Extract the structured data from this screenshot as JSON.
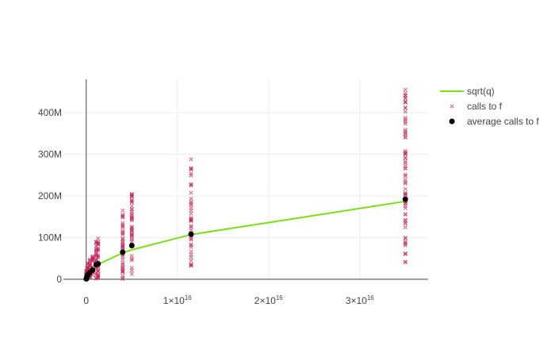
{
  "chart_data": {
    "type": "scatter",
    "x_axis": {
      "range": [
        -2500000000000000.0,
        3.75e+16
      ],
      "ticks": [
        {
          "value": 0,
          "base": "0",
          "exp": ""
        },
        {
          "value": 1e+16,
          "base": "1×10",
          "exp": "16"
        },
        {
          "value": 2e+16,
          "base": "2×10",
          "exp": "16"
        },
        {
          "value": 3e+16,
          "base": "3×10",
          "exp": "16"
        }
      ]
    },
    "y_axis": {
      "range": [
        0,
        480000000
      ],
      "ticks": [
        {
          "value": 0,
          "label": "0"
        },
        {
          "value": 100000000,
          "label": "100M"
        },
        {
          "value": 200000000,
          "label": "200M"
        },
        {
          "value": 300000000,
          "label": "300M"
        },
        {
          "value": 400000000,
          "label": "400M"
        }
      ]
    },
    "grid": true,
    "legend_position": "top-right",
    "series": [
      {
        "name": "sqrt(q)",
        "mode": "line",
        "color": "#7fdc1c",
        "x": [
          0,
          10000000000000.0,
          50000000000000.0,
          100000000000000.0,
          200000000000000.0,
          400000000000000.0,
          700000000000000.0,
          1000000000000000.0,
          1200000000000000.0,
          4000000000000000.0,
          5000000000000000.0,
          1.15e+16,
          3.5e+16
        ],
        "y": [
          0,
          3162278,
          7071068,
          10000000,
          14142136,
          20000000,
          26457513,
          31622777,
          34641016,
          63245553,
          70710678,
          107238053,
          187082869
        ]
      },
      {
        "name": "calls to f",
        "mode": "markers",
        "marker": "x",
        "color": "#c0245c",
        "clusters": [
          {
            "x": 10000000000000.0,
            "count": 12,
            "y_min": 0,
            "y_max": 20000000
          },
          {
            "x": 100000000000000.0,
            "count": 14,
            "y_min": 0,
            "y_max": 28000000
          },
          {
            "x": 200000000000000.0,
            "count": 16,
            "y_min": 0,
            "y_max": 38000000
          },
          {
            "x": 400000000000000.0,
            "count": 18,
            "y_min": 0,
            "y_max": 48000000
          },
          {
            "x": 700000000000000.0,
            "count": 18,
            "y_min": 0,
            "y_max": 55000000
          },
          {
            "x": 1100000000000000.0,
            "count": 24,
            "y_min": 0,
            "y_max": 90000000
          },
          {
            "x": 1300000000000000.0,
            "count": 24,
            "y_min": 0,
            "y_max": 98000000
          },
          {
            "x": 4000000000000000.0,
            "count": 40,
            "y_min": 0,
            "y_max": 165000000
          },
          {
            "x": 5000000000000000.0,
            "count": 40,
            "y_min": 5000000,
            "y_max": 205000000
          },
          {
            "x": 1.15e+16,
            "count": 40,
            "y_min": 20000000,
            "y_max": 288000000
          },
          {
            "x": 3.5e+16,
            "count": 70,
            "y_min": 5000000,
            "y_max": 455000000
          }
        ]
      },
      {
        "name": "average calls to f",
        "mode": "markers",
        "marker": "circle",
        "color": "#000000",
        "x": [
          10000000000000.0,
          50000000000000.0,
          100000000000000.0,
          200000000000000.0,
          400000000000000.0,
          700000000000000.0,
          1100000000000000.0,
          1300000000000000.0,
          4000000000000000.0,
          5000000000000000.0,
          1.15e+16,
          3.5e+16
        ],
        "y": [
          1000000,
          4000000,
          8000000,
          11000000,
          16000000,
          22000000,
          35000000,
          37000000,
          65000000,
          81000000,
          108000000,
          192000000
        ]
      }
    ]
  }
}
